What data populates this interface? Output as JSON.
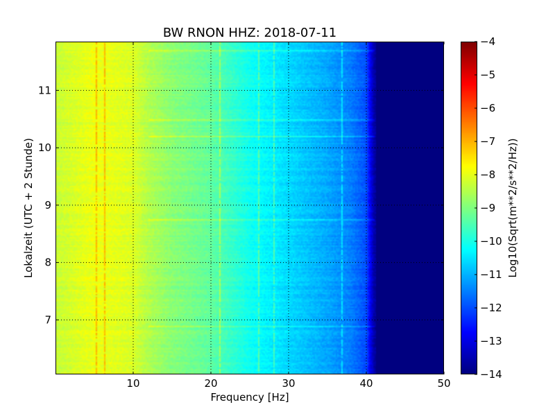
{
  "chart_data": {
    "type": "heatmap",
    "title": "BW RNON HHZ: 2018-07-11",
    "xlabel": "Frequency [Hz]",
    "ylabel": "Lokalzeit (UTC + 2 Stunde)",
    "xlim": [
      0,
      50
    ],
    "ylim": [
      11.85,
      6.05
    ],
    "y_inverted": true,
    "x_ticks": [
      10,
      20,
      30,
      40,
      50
    ],
    "x_tick_labels": [
      "10",
      "20",
      "30",
      "40",
      "50"
    ],
    "y_ticks": [
      7,
      8,
      9,
      10,
      11
    ],
    "y_tick_labels": [
      "7",
      "8",
      "9",
      "10",
      "11"
    ],
    "grid": true,
    "colormap": "jet",
    "colorbar": {
      "label": "Log10(Sqrt(m**2/s**2/Hz))",
      "vmin": -14,
      "vmax": -4,
      "ticks": [
        -4,
        -5,
        -6,
        -7,
        -8,
        -9,
        -10,
        -11,
        -12,
        -13,
        -14
      ],
      "tick_labels": [
        "−4",
        "−5",
        "−6",
        "−7",
        "−8",
        "−9",
        "−10",
        "−11",
        "−12",
        "−13",
        "−14"
      ]
    },
    "spectral_profile": {
      "frequency_hz": [
        0,
        5,
        10,
        12,
        15,
        20,
        25,
        30,
        35,
        38,
        40,
        41,
        42,
        45,
        50
      ],
      "log10_amplitude": [
        -8.3,
        -7.9,
        -8.1,
        -8.5,
        -8.9,
        -9.3,
        -10.1,
        -10.6,
        -11.1,
        -11.5,
        -12.0,
        -13.6,
        -14.0,
        -14.0,
        -14.0
      ]
    },
    "time_range_hours": [
      6.05,
      11.85
    ],
    "narrowband_lines_hz": [
      5.2,
      6.2,
      21.0,
      26.0,
      28.0,
      36.8
    ],
    "transient_hours": [
      6.9,
      8.75,
      10.2,
      10.5,
      11.7
    ]
  }
}
